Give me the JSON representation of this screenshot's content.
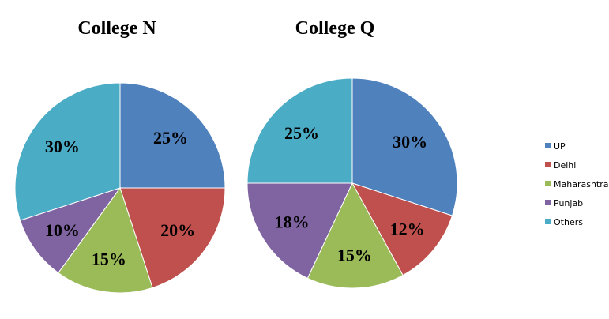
{
  "chart_data": [
    {
      "type": "pie",
      "title": "College N",
      "categories": [
        "UP",
        "Delhi",
        "Maharashtra",
        "Punjab",
        "Others"
      ],
      "values": [
        25,
        20,
        15,
        10,
        30
      ],
      "labels": [
        "25%",
        "20%",
        "15%",
        "10%",
        "30%"
      ]
    },
    {
      "type": "pie",
      "title": "College Q",
      "categories": [
        "UP",
        "Delhi",
        "Maharashtra",
        "Punjab",
        "Others"
      ],
      "values": [
        30,
        12,
        15,
        18,
        25
      ],
      "labels": [
        "30%",
        "12%",
        "15%",
        "18%",
        "25%"
      ]
    }
  ],
  "legend": {
    "placement": "right",
    "items": [
      "UP",
      "Delhi",
      "Maharashtra",
      "Punjab",
      "Others"
    ]
  },
  "colors": {
    "UP": "#4F81BD",
    "Delhi": "#C0504D",
    "Maharashtra": "#9BBB59",
    "Punjab": "#8064A2",
    "Others": "#4BACC6"
  }
}
